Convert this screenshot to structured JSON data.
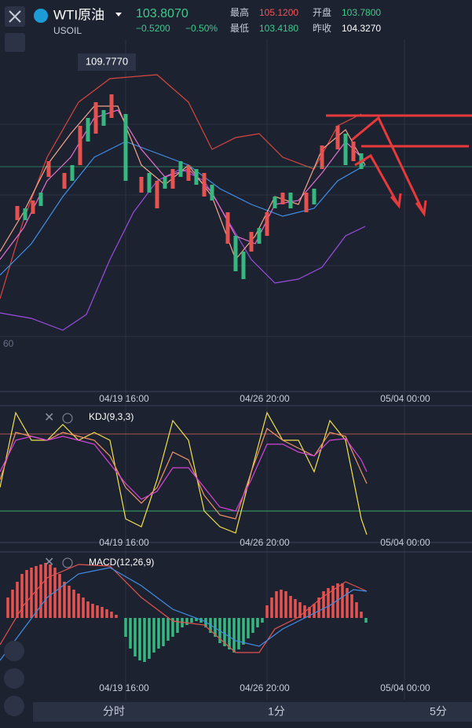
{
  "header": {
    "symbol": "WTI原油",
    "code": "USOIL",
    "price": "103.8070",
    "change": "−0.5200",
    "change_pct": "−0.50%",
    "stats": [
      {
        "label": "最高",
        "value": "105.1200"
      },
      {
        "label": "最低",
        "value": "103.4180"
      },
      {
        "label": "开盘",
        "value": "103.7800"
      },
      {
        "label": "昨收",
        "value": "104.3270"
      }
    ]
  },
  "main_chart": {
    "max_label": "109.7770",
    "edge_label": "60",
    "time_labels": [
      "04/19 16:00",
      "04/26 20:00",
      "05/04 00:00"
    ]
  },
  "kdj": {
    "title": "KDJ(9,3,3)"
  },
  "macd": {
    "title": "MACD(12,26,9)"
  },
  "tabs": [
    "分时",
    "1分",
    "5分"
  ]
}
